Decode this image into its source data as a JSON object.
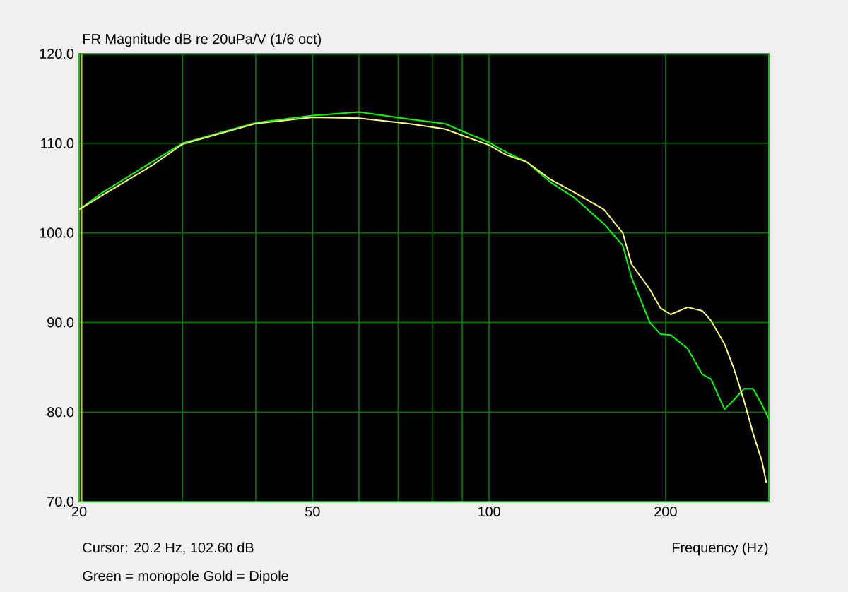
{
  "chart_data": {
    "type": "line",
    "title": "FR Magnitude dB re 20uPa/V (1/6 oct)",
    "xlabel": "Frequency (Hz)",
    "annotations": [
      "Cursor: 20.2 Hz, 102.60 dB",
      "Green = monopole Gold = Dipole"
    ],
    "log": "x",
    "grid": true,
    "marker": "none",
    "line_style": "solid",
    "xlim": [
      20,
      300
    ],
    "ylim": [
      70,
      120
    ],
    "xticks": [
      20,
      {
        "value": 30,
        "label": null
      },
      {
        "value": 40,
        "label": null
      },
      50,
      {
        "value": 60,
        "label": null
      },
      {
        "value": 70,
        "label": null
      },
      {
        "value": 80,
        "label": null
      },
      {
        "value": 90,
        "label": null
      },
      100,
      200,
      {
        "value": 300,
        "label": null
      }
    ],
    "yticks": [
      {
        "value": 70,
        "label": "70.0"
      },
      {
        "value": 80,
        "label": "80.0"
      },
      {
        "value": 90,
        "label": "90.0"
      },
      {
        "value": 100,
        "label": "100.0"
      },
      {
        "value": 110,
        "label": "110.0"
      },
      {
        "value": 120,
        "label": "120.0"
      }
    ],
    "ref_lines": [
      {
        "axis": "x",
        "value": 20.2,
        "color": "#c8c800"
      }
    ],
    "series": [
      {
        "color": "#00ff00",
        "x": [
          20,
          21.9,
          26.6,
          30,
          40,
          50,
          60,
          73,
          84,
          100,
          107,
          116,
          127,
          140,
          157,
          169,
          175,
          188,
          196,
          204,
          218,
          231,
          239,
          252,
          261,
          272,
          282,
          292,
          300
        ],
        "values": [
          102.6,
          104.5,
          107.9,
          110.0,
          112.3,
          113.1,
          113.5,
          112.7,
          112.2,
          110.1,
          109.0,
          107.9,
          105.7,
          103.9,
          101.0,
          98.6,
          95.0,
          90.0,
          88.7,
          88.6,
          87.1,
          84.2,
          83.7,
          80.3,
          81.3,
          82.6,
          82.6,
          80.8,
          79.2
        ]
      },
      {
        "color": "#ffff80",
        "x": [
          20,
          21.9,
          26.6,
          30,
          40,
          50,
          60,
          73,
          84,
          100,
          107,
          116,
          127,
          140,
          157,
          169,
          175,
          188,
          196,
          204,
          218,
          231,
          239,
          252,
          261,
          272,
          282,
          292,
          297
        ],
        "values": [
          102.6,
          104.2,
          107.5,
          109.9,
          112.2,
          112.9,
          112.8,
          112.2,
          111.6,
          109.8,
          108.7,
          107.9,
          106.0,
          104.5,
          102.6,
          100.0,
          96.5,
          93.7,
          91.6,
          90.9,
          91.7,
          91.3,
          90.2,
          87.6,
          85.0,
          81.3,
          77.6,
          74.5,
          72.1
        ]
      }
    ]
  }
}
